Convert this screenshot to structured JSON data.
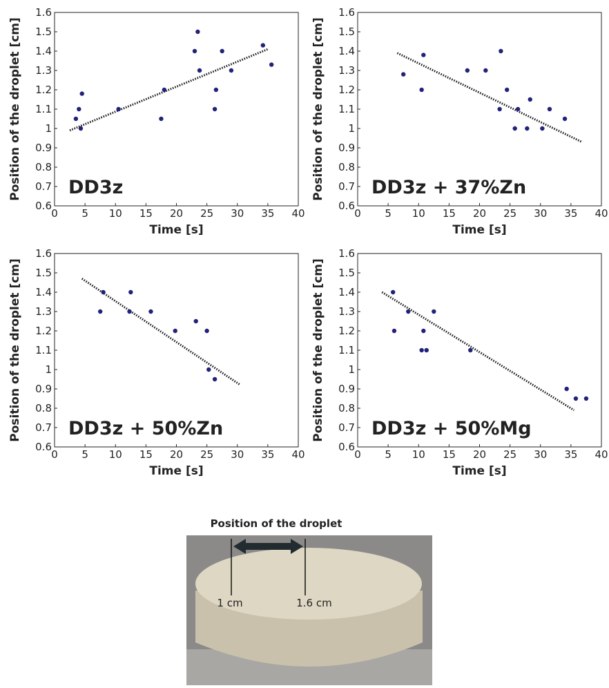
{
  "chart_data": [
    {
      "type": "scatter",
      "annotation": "DD3z",
      "x_label": "Time [s]",
      "y_label": "Position of the droplet [cm]",
      "color": "#22227a",
      "x": [
        3.5,
        4,
        4.3,
        4.5,
        10.5,
        17.5,
        18,
        23,
        23.5,
        23.8,
        26.3,
        26.5,
        27.5,
        29,
        34.2,
        35.6
      ],
      "values": [
        1.05,
        1.1,
        1.0,
        1.18,
        1.1,
        1.05,
        1.2,
        1.4,
        1.5,
        1.3,
        1.1,
        1.2,
        1.4,
        1.3,
        1.43,
        1.33
      ],
      "trendline": {
        "x": [
          2.5,
          35
        ],
        "y": [
          0.99,
          1.41
        ]
      },
      "xlim": [
        0,
        40
      ],
      "ylim": [
        0.6,
        1.6
      ],
      "xticks": [
        0,
        5,
        10,
        15,
        20,
        25,
        30,
        35,
        40
      ],
      "yticks": [
        0.6,
        0.7,
        0.8,
        0.9,
        1,
        1.1,
        1.2,
        1.3,
        1.4,
        1.5,
        1.6
      ]
    },
    {
      "type": "scatter",
      "annotation": "DD3z + 37%Zn",
      "x_label": "Time [s]",
      "y_label": "Position of the droplet [cm]",
      "color": "#22227a",
      "x": [
        7.5,
        10.5,
        10.8,
        18,
        21,
        23.3,
        23.5,
        24.5,
        25.8,
        26.3,
        27.8,
        28.3,
        30.3,
        31.5,
        34
      ],
      "values": [
        1.28,
        1.2,
        1.38,
        1.3,
        1.3,
        1.1,
        1.4,
        1.2,
        1.0,
        1.1,
        1.0,
        1.15,
        1.0,
        1.1,
        1.05
      ],
      "trendline": {
        "x": [
          6.5,
          36.8
        ],
        "y": [
          1.39,
          0.93
        ]
      },
      "xlim": [
        0,
        40
      ],
      "ylim": [
        0.6,
        1.6
      ],
      "xticks": [
        0,
        5,
        10,
        15,
        20,
        25,
        30,
        35,
        40
      ],
      "yticks": [
        0.6,
        0.7,
        0.8,
        0.9,
        1,
        1.1,
        1.2,
        1.3,
        1.4,
        1.5,
        1.6
      ]
    },
    {
      "type": "scatter",
      "annotation": "DD3z + 50%Zn",
      "x_label": "Time [s]",
      "y_label": "Position of the droplet [cm]",
      "color": "#22227a",
      "x": [
        7.5,
        8,
        12.3,
        12.5,
        15.8,
        19.8,
        23.2,
        25,
        25.3,
        26.3
      ],
      "values": [
        1.3,
        1.4,
        1.3,
        1.4,
        1.3,
        1.2,
        1.25,
        1.2,
        1.0,
        0.95
      ],
      "trendline": {
        "x": [
          4.5,
          30.5
        ],
        "y": [
          1.47,
          0.92
        ]
      },
      "xlim": [
        0,
        40
      ],
      "ylim": [
        0.6,
        1.6
      ],
      "xticks": [
        0,
        5,
        10,
        15,
        20,
        25,
        30,
        35,
        40
      ],
      "yticks": [
        0.6,
        0.7,
        0.8,
        0.9,
        1,
        1.1,
        1.2,
        1.3,
        1.4,
        1.5,
        1.6
      ]
    },
    {
      "type": "scatter",
      "annotation": "DD3z + 50%Mg",
      "x_label": "Time [s]",
      "y_label": "Position of the droplet [cm]",
      "color": "#22227a",
      "x": [
        5.8,
        6,
        8.3,
        10.5,
        10.8,
        11.3,
        12.5,
        18.5,
        34.3,
        35.8,
        37.5
      ],
      "values": [
        1.4,
        1.2,
        1.3,
        1.1,
        1.2,
        1.1,
        1.3,
        1.1,
        0.9,
        0.85,
        0.85
      ],
      "trendline": {
        "x": [
          4,
          35.5
        ],
        "y": [
          1.4,
          0.79
        ]
      },
      "xlim": [
        0,
        40
      ],
      "ylim": [
        0.6,
        1.6
      ],
      "xticks": [
        0,
        5,
        10,
        15,
        20,
        25,
        30,
        35,
        40
      ],
      "yticks": [
        0.6,
        0.7,
        0.8,
        0.9,
        1,
        1.1,
        1.2,
        1.3,
        1.4,
        1.5,
        1.6
      ]
    }
  ],
  "photo": {
    "title": "Position of the droplet",
    "labels": [
      "1 cm",
      "1.6 cm"
    ]
  }
}
